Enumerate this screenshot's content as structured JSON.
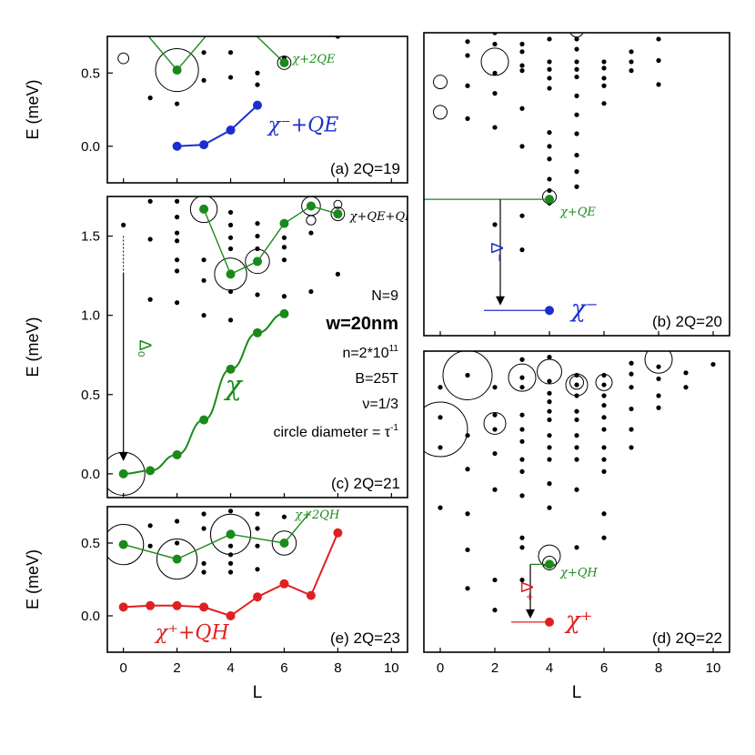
{
  "figure": {
    "axis_ylabel": "E (meV)",
    "axis_xlabel": "L",
    "colors": {
      "green": "#1a8a1a",
      "blue": "#1b2fd0",
      "red": "#e02020",
      "black": "#000000"
    },
    "info": [
      "N=9",
      "w=20nm",
      "n=2*10",
      "B=25T",
      "ν=1/3",
      "circle diameter = τ"
    ],
    "info_sup_n": "11",
    "info_sup_tau": "-1"
  },
  "chart_data": [
    {
      "id": "a",
      "type": "scatter",
      "tag": "(a) 2Q=19",
      "xlim": [
        -0.6,
        10.6
      ],
      "ylim": [
        -0.25,
        0.75
      ],
      "yticks": [
        0.0,
        0.5
      ],
      "ytick_labels": [
        "0.0",
        "0.5"
      ],
      "dots": [
        [
          1,
          0.33
        ],
        [
          2,
          0.29
        ],
        [
          3,
          0.45
        ],
        [
          3,
          0.64
        ],
        [
          4,
          0.47
        ],
        [
          4,
          0.64
        ],
        [
          5,
          0.42
        ],
        [
          5,
          0.5
        ],
        [
          6,
          0.6
        ],
        [
          8,
          0.75
        ]
      ],
      "circles": [
        [
          0,
          0.6,
          0.4
        ],
        [
          2,
          0.52,
          1.6
        ]
      ],
      "series": [
        {
          "name": "χ+2QE",
          "color": "green",
          "x": [
            2,
            6
          ],
          "y": [
            0.52,
            0.57
          ],
          "outer": true
        },
        {
          "name": "χ⁻+QE",
          "color": "blue",
          "x": [
            2,
            3,
            4,
            5
          ],
          "y": [
            0.0,
            0.01,
            0.11,
            0.28
          ]
        }
      ],
      "series_circles": [
        [
          6,
          0.57,
          0.5
        ]
      ],
      "labels": [
        {
          "text": "χ+2QE",
          "color": "green",
          "x": 6.3,
          "y": 0.57,
          "size": 13
        },
        {
          "text": "χ⁻+QE",
          "color": "blue",
          "x": 5.4,
          "y": 0.1,
          "size": 22
        }
      ]
    },
    {
      "id": "c",
      "type": "scatter",
      "tag": "(c) 2Q=21",
      "xlim": [
        -0.6,
        10.6
      ],
      "ylim": [
        -0.15,
        1.75
      ],
      "yticks": [
        0.0,
        0.5,
        1.0,
        1.5
      ],
      "ytick_labels": [
        "0.0",
        "0.5",
        "1.0",
        "1.5"
      ],
      "dots": [
        [
          0,
          1.57
        ],
        [
          1,
          1.72
        ],
        [
          1,
          1.48
        ],
        [
          1,
          1.1
        ],
        [
          2,
          1.72
        ],
        [
          2,
          1.62
        ],
        [
          2,
          1.52
        ],
        [
          2,
          1.47
        ],
        [
          2,
          1.35
        ],
        [
          2,
          1.28
        ],
        [
          2,
          1.08
        ],
        [
          3,
          1.35
        ],
        [
          3,
          1.22
        ],
        [
          3,
          1.0
        ],
        [
          4,
          1.65
        ],
        [
          4,
          1.57
        ],
        [
          4,
          1.49
        ],
        [
          4,
          1.42
        ],
        [
          4,
          1.15
        ],
        [
          4,
          0.97
        ],
        [
          5,
          1.58
        ],
        [
          5,
          1.5
        ],
        [
          5,
          1.42
        ],
        [
          5,
          1.35
        ],
        [
          5,
          1.13
        ],
        [
          6,
          1.49
        ],
        [
          6,
          1.43
        ],
        [
          6,
          1.35
        ],
        [
          6,
          1.12
        ],
        [
          7,
          1.52
        ],
        [
          7,
          1.15
        ],
        [
          8,
          1.26
        ]
      ],
      "circles": [
        [
          3,
          1.67,
          1.0
        ],
        [
          4,
          1.26,
          1.2
        ],
        [
          5,
          1.34,
          0.9
        ],
        [
          7,
          1.69,
          0.7
        ],
        [
          7,
          1.6,
          0.35
        ],
        [
          8,
          1.64,
          0.5
        ],
        [
          8,
          1.7,
          0.3
        ],
        [
          0,
          0.0,
          1.6
        ]
      ],
      "series": [
        {
          "name": "χ+QE+QH",
          "color": "green",
          "x": [
            3,
            4,
            5,
            6,
            7,
            8
          ],
          "y": [
            1.67,
            1.26,
            1.34,
            1.58,
            1.69,
            1.64
          ]
        },
        {
          "name": "χ",
          "color": "green",
          "x": [
            0,
            1,
            2,
            3,
            4,
            5,
            6
          ],
          "y": [
            0.0,
            0.02,
            0.12,
            0.34,
            0.66,
            0.89,
            1.01
          ],
          "smooth": true
        }
      ],
      "labels": [
        {
          "text": "χ+QE+QH",
          "color": "black",
          "x": 8.45,
          "y": 1.6,
          "size": 13
        },
        {
          "text": "χ",
          "color": "green",
          "x": 3.8,
          "y": 0.5,
          "size": 30
        }
      ],
      "arrow": {
        "x": 0,
        "y_from": 1.5,
        "y_to": 0.08,
        "label": "Δ₀",
        "dashed_top": true
      }
    },
    {
      "id": "e",
      "type": "scatter",
      "tag": "(e) 2Q=23",
      "xlim": [
        -0.6,
        10.6
      ],
      "ylim": [
        -0.25,
        0.75
      ],
      "yticks": [
        0.0,
        0.5
      ],
      "ytick_labels": [
        "0.0",
        "0.5"
      ],
      "dots": [
        [
          1,
          0.62
        ],
        [
          1,
          0.48
        ],
        [
          2,
          0.65
        ],
        [
          2,
          0.5
        ],
        [
          3,
          0.7
        ],
        [
          3,
          0.6
        ],
        [
          3,
          0.36
        ],
        [
          3,
          0.3
        ],
        [
          4,
          0.72
        ],
        [
          4,
          0.48
        ],
        [
          4,
          0.42
        ],
        [
          4,
          0.36
        ],
        [
          4,
          0.3
        ],
        [
          5,
          0.7
        ],
        [
          5,
          0.6
        ],
        [
          5,
          0.48
        ],
        [
          5,
          0.32
        ],
        [
          6,
          0.68
        ]
      ],
      "circles": [
        [
          0,
          0.49,
          1.5
        ],
        [
          2,
          0.39,
          1.5
        ],
        [
          4,
          0.56,
          1.5
        ],
        [
          6,
          0.5,
          0.9
        ]
      ],
      "series": [
        {
          "name": "χ+2QH",
          "color": "green",
          "x": [
            0,
            2,
            4,
            6
          ],
          "y": [
            0.49,
            0.39,
            0.56,
            0.5
          ],
          "outer": true
        },
        {
          "name": "χ⁺+QH",
          "color": "red",
          "x": [
            0,
            1,
            2,
            3,
            4,
            5,
            6,
            7,
            8
          ],
          "y": [
            0.06,
            0.07,
            0.07,
            0.06,
            0.0,
            0.13,
            0.22,
            0.14,
            0.57
          ]
        }
      ],
      "labels": [
        {
          "text": "χ+2QH",
          "color": "green",
          "x": 6.4,
          "y": 0.67,
          "size": 13
        },
        {
          "text": "χ⁺+QH",
          "color": "red",
          "x": 1.2,
          "y": -0.16,
          "size": 22
        }
      ]
    },
    {
      "id": "b",
      "type": "scatter",
      "tag": "(b) 2Q=20",
      "xlim": [
        -0.6,
        10.6
      ],
      "ylim": [
        -0.2,
        2.2
      ],
      "yticks": [],
      "ytick_labels": [],
      "dots": [
        [
          1,
          2.13
        ],
        [
          1,
          2.02
        ],
        [
          1,
          1.78
        ],
        [
          1,
          1.52
        ],
        [
          2,
          2.2
        ],
        [
          2,
          2.11
        ],
        [
          2,
          1.88
        ],
        [
          2,
          1.72
        ],
        [
          2,
          1.45
        ],
        [
          2,
          0.68
        ],
        [
          3,
          2.11
        ],
        [
          3,
          2.05
        ],
        [
          3,
          1.94
        ],
        [
          3,
          1.9
        ],
        [
          3,
          1.6
        ],
        [
          3,
          1.3
        ],
        [
          3,
          0.75
        ],
        [
          3,
          0.48
        ],
        [
          4,
          2.15
        ],
        [
          4,
          1.97
        ],
        [
          4,
          1.91
        ],
        [
          4,
          1.84
        ],
        [
          4,
          1.76
        ],
        [
          4,
          1.41
        ],
        [
          4,
          1.3
        ],
        [
          4,
          1.2
        ],
        [
          4,
          1.04
        ],
        [
          4,
          0.95
        ],
        [
          4,
          0.85
        ],
        [
          5,
          2.15
        ],
        [
          5,
          2.07
        ],
        [
          5,
          1.97
        ],
        [
          5,
          1.91
        ],
        [
          5,
          1.85
        ],
        [
          5,
          1.7
        ],
        [
          5,
          1.55
        ],
        [
          5,
          1.4
        ],
        [
          5,
          1.23
        ],
        [
          5,
          1.1
        ],
        [
          5,
          0.98
        ],
        [
          6,
          1.97
        ],
        [
          6,
          1.92
        ],
        [
          6,
          1.84
        ],
        [
          6,
          1.78
        ],
        [
          6,
          1.64
        ],
        [
          7,
          2.05
        ],
        [
          7,
          1.97
        ],
        [
          7,
          1.9
        ],
        [
          8,
          2.15
        ],
        [
          8,
          1.98
        ],
        [
          8,
          1.79
        ],
        [
          9,
          2.23
        ]
      ],
      "circles": [
        [
          0,
          1.81,
          0.5
        ],
        [
          0,
          1.57,
          0.5
        ],
        [
          2,
          1.97,
          1.0
        ],
        [
          5,
          2.22,
          0.5
        ],
        [
          4,
          0.9,
          0.5
        ]
      ],
      "series": [
        {
          "name": "χ⁻",
          "color": "blue",
          "x": [
            4
          ],
          "y": [
            0.0
          ]
        },
        {
          "name": "χ+QE",
          "color": "green",
          "x": [
            4
          ],
          "y": [
            0.88
          ]
        }
      ],
      "labels": [
        {
          "text": "χ+QE",
          "color": "green",
          "x": 4.4,
          "y": 0.75,
          "size": 13
        },
        {
          "text": "χ⁻",
          "color": "blue",
          "x": 4.8,
          "y": -0.05,
          "size": 26
        }
      ],
      "hlines": [
        [
          -0.6,
          4.1,
          0.88,
          "green"
        ],
        [
          1.6,
          4.1,
          0.0,
          "blue"
        ]
      ],
      "arrow": {
        "x": 2.2,
        "y_from": 0.88,
        "y_to": 0.04,
        "label": "Δ⁻"
      }
    },
    {
      "id": "d",
      "type": "scatter",
      "tag": "(d) 2Q=22",
      "xlim": [
        -0.6,
        10.6
      ],
      "ylim": [
        -0.25,
        2.25
      ],
      "yticks": [],
      "ytick_labels": [],
      "dots": [
        [
          0,
          1.95
        ],
        [
          0,
          1.7
        ],
        [
          0,
          1.45
        ],
        [
          0,
          0.95
        ],
        [
          1,
          2.05
        ],
        [
          1,
          1.55
        ],
        [
          1,
          1.27
        ],
        [
          1,
          0.9
        ],
        [
          1,
          0.6
        ],
        [
          1,
          0.28
        ],
        [
          2,
          1.95
        ],
        [
          2,
          1.72
        ],
        [
          2,
          1.6
        ],
        [
          2,
          1.4
        ],
        [
          2,
          1.1
        ],
        [
          2,
          0.35
        ],
        [
          2,
          0.1
        ],
        [
          3,
          2.18
        ],
        [
          3,
          2.03
        ],
        [
          3,
          1.95
        ],
        [
          3,
          1.72
        ],
        [
          3,
          1.6
        ],
        [
          3,
          1.5
        ],
        [
          3,
          1.35
        ],
        [
          3,
          1.25
        ],
        [
          3,
          1.05
        ],
        [
          3,
          0.7
        ],
        [
          3,
          0.62
        ],
        [
          3,
          0.35
        ],
        [
          4,
          2.2
        ],
        [
          4,
          2.0
        ],
        [
          4,
          1.9
        ],
        [
          4,
          1.83
        ],
        [
          4,
          1.75
        ],
        [
          4,
          1.68
        ],
        [
          4,
          1.55
        ],
        [
          4,
          1.45
        ],
        [
          4,
          1.35
        ],
        [
          4,
          1.15
        ],
        [
          4,
          0.95
        ],
        [
          5,
          2.05
        ],
        [
          5,
          1.97
        ],
        [
          5,
          1.88
        ],
        [
          5,
          1.75
        ],
        [
          5,
          1.68
        ],
        [
          5,
          1.55
        ],
        [
          5,
          1.45
        ],
        [
          5,
          1.35
        ],
        [
          5,
          1.1
        ],
        [
          5,
          0.62
        ],
        [
          6,
          2.05
        ],
        [
          6,
          1.97
        ],
        [
          6,
          1.88
        ],
        [
          6,
          1.8
        ],
        [
          6,
          1.7
        ],
        [
          6,
          1.6
        ],
        [
          6,
          1.45
        ],
        [
          6,
          1.35
        ],
        [
          6,
          1.25
        ],
        [
          6,
          0.9
        ],
        [
          6,
          0.7
        ],
        [
          7,
          2.15
        ],
        [
          7,
          2.06
        ],
        [
          7,
          1.95
        ],
        [
          7,
          1.77
        ],
        [
          7,
          1.6
        ],
        [
          7,
          1.45
        ],
        [
          8,
          2.12
        ],
        [
          8,
          2.02
        ],
        [
          8,
          1.88
        ],
        [
          8,
          1.78
        ],
        [
          9,
          2.07
        ],
        [
          9,
          1.95
        ],
        [
          10,
          2.14
        ]
      ],
      "circles": [
        [
          0,
          1.6,
          2.0
        ],
        [
          1,
          2.05,
          1.8
        ],
        [
          2,
          1.65,
          0.8
        ],
        [
          3,
          2.03,
          1.0
        ],
        [
          4,
          2.08,
          0.9
        ],
        [
          5,
          1.97,
          0.8
        ],
        [
          5,
          1.99,
          0.5
        ],
        [
          6,
          1.99,
          0.6
        ],
        [
          8,
          2.18,
          1.0
        ],
        [
          4,
          0.55,
          0.8
        ],
        [
          4,
          0.49,
          0.5
        ]
      ],
      "series": [
        {
          "name": "χ⁺",
          "color": "red",
          "x": [
            4
          ],
          "y": [
            0.0
          ]
        },
        {
          "name": "χ+QH",
          "color": "green",
          "x": [
            4
          ],
          "y": [
            0.48
          ]
        }
      ],
      "labels": [
        {
          "text": "χ+QH",
          "color": "green",
          "x": 4.4,
          "y": 0.38,
          "size": 13
        },
        {
          "text": "χ⁺",
          "color": "red",
          "x": 4.6,
          "y": -0.05,
          "size": 26
        }
      ],
      "hlines": [
        [
          3.3,
          4.2,
          0.48,
          "green"
        ],
        [
          2.6,
          3.9,
          0.0,
          "red"
        ]
      ],
      "arrow": {
        "x": 3.3,
        "y_from": 0.48,
        "y_to": 0.03,
        "label": "Δ⁺"
      }
    }
  ]
}
